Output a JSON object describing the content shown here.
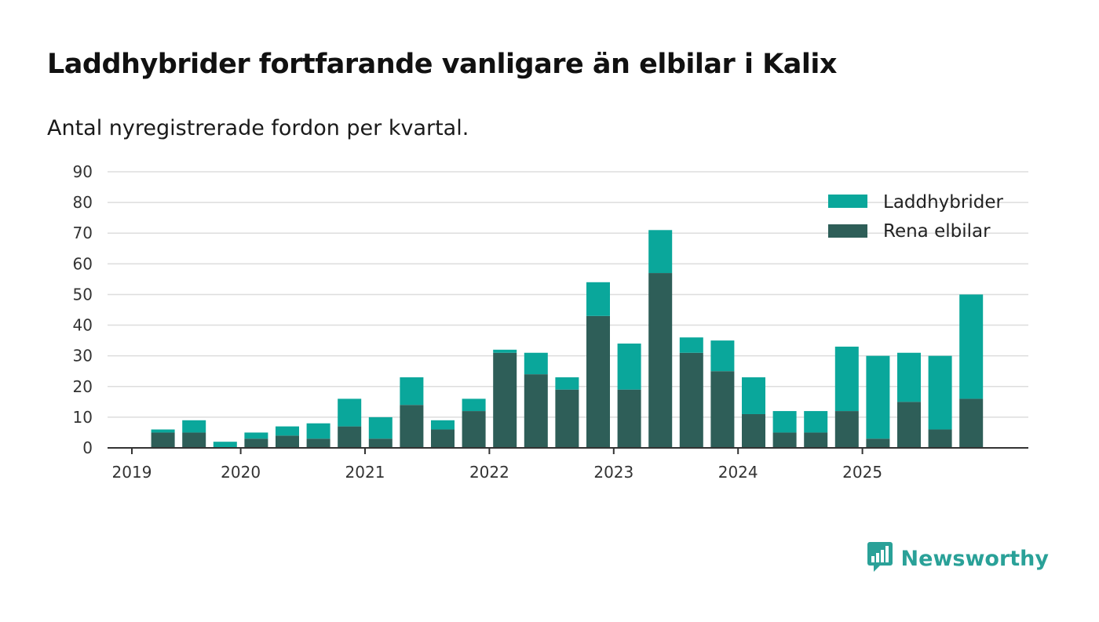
{
  "title": "Laddhybrider fortfarande vanligare än elbilar i Kalix",
  "subtitle": "Antal nyregistrerade fordon per kvartal.",
  "brand": {
    "name": "Newsworthy",
    "color": "#2aa198",
    "icon": "newsworthy-logo-icon"
  },
  "colors": {
    "laddhybrider": "#0aa79b",
    "rena_elbilar": "#2e5e58",
    "grid": "#dddddd",
    "axis": "#333333"
  },
  "chart_data": {
    "type": "bar",
    "stacked": true,
    "title": "Laddhybrider fortfarande vanligare än elbilar i Kalix",
    "subtitle": "Antal nyregistrerade fordon per kvartal.",
    "xlabel": "",
    "ylabel": "",
    "ylim": [
      0,
      90
    ],
    "yticks": [
      0,
      10,
      20,
      30,
      40,
      50,
      60,
      70,
      80,
      90
    ],
    "xticks": [
      "2019",
      "2020",
      "2021",
      "2022",
      "2023",
      "2024",
      "2025"
    ],
    "grid": true,
    "legend_position": "top-right",
    "categories": [
      "2019Q1",
      "2019Q2",
      "2019Q3",
      "2019Q4",
      "2020Q1",
      "2020Q2",
      "2020Q3",
      "2020Q4",
      "2021Q1",
      "2021Q2",
      "2021Q3",
      "2021Q4",
      "2022Q1",
      "2022Q2",
      "2022Q3",
      "2022Q4",
      "2023Q1",
      "2023Q2",
      "2023Q3",
      "2023Q4",
      "2024Q1",
      "2024Q2",
      "2024Q3",
      "2024Q4",
      "2025Q1",
      "2025Q2",
      "2025Q3",
      "2025Q4"
    ],
    "series": [
      {
        "name": "Rena elbilar",
        "color": "#2e5e58",
        "values": [
          0,
          5,
          5,
          0,
          3,
          4,
          3,
          7,
          3,
          14,
          6,
          12,
          31,
          24,
          19,
          43,
          19,
          57,
          31,
          25,
          11,
          5,
          5,
          12,
          3,
          15,
          6,
          16
        ]
      },
      {
        "name": "Laddhybrider",
        "color": "#0aa79b",
        "values": [
          0,
          1,
          4,
          2,
          2,
          3,
          5,
          9,
          7,
          9,
          3,
          4,
          1,
          7,
          4,
          11,
          15,
          14,
          5,
          10,
          12,
          7,
          7,
          21,
          27,
          16,
          24,
          34
        ]
      }
    ],
    "legend": [
      "Laddhybrider",
      "Rena elbilar"
    ]
  }
}
